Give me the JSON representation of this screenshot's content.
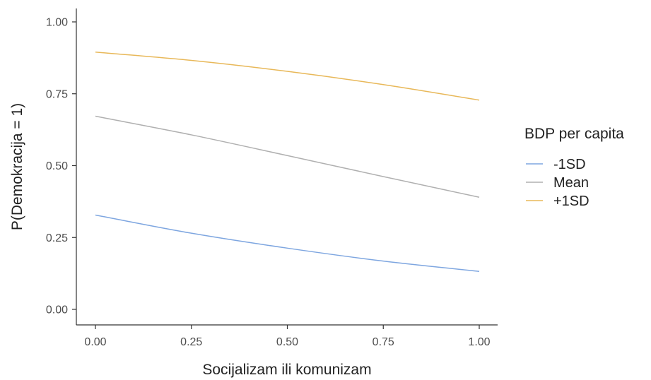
{
  "chart_data": {
    "type": "line",
    "title": "",
    "xlabel": "Socijalizam ili komunizam",
    "ylabel": "P(Demokracija = 1)",
    "xlim": [
      -0.05,
      1.05
    ],
    "ylim": [
      -0.05,
      1.05
    ],
    "x_ticks": [
      0,
      0.25,
      0.5,
      0.75,
      1
    ],
    "x_tick_labels": [
      "0.00",
      "0.25",
      "0.50",
      "0.75",
      "1.00"
    ],
    "y_ticks": [
      0,
      0.25,
      0.5,
      0.75,
      1
    ],
    "y_tick_labels": [
      "0.00",
      "0.25",
      "0.50",
      "0.75",
      "1.00"
    ],
    "grid": false,
    "legend": {
      "title": "BDP per capita",
      "placement": "right"
    },
    "x": [
      0,
      0.25,
      0.5,
      0.75,
      1
    ],
    "series": [
      {
        "name": "-1SD",
        "color": "#7ea6e0",
        "values": [
          0.328,
          0.265,
          0.213,
          0.168,
          0.132
        ]
      },
      {
        "name": "Mean",
        "color": "#b0b0b0",
        "values": [
          0.672,
          0.607,
          0.535,
          0.462,
          0.39
        ]
      },
      {
        "name": "+1SD",
        "color": "#e8b859",
        "values": [
          0.895,
          0.866,
          0.828,
          0.782,
          0.728
        ]
      }
    ]
  }
}
